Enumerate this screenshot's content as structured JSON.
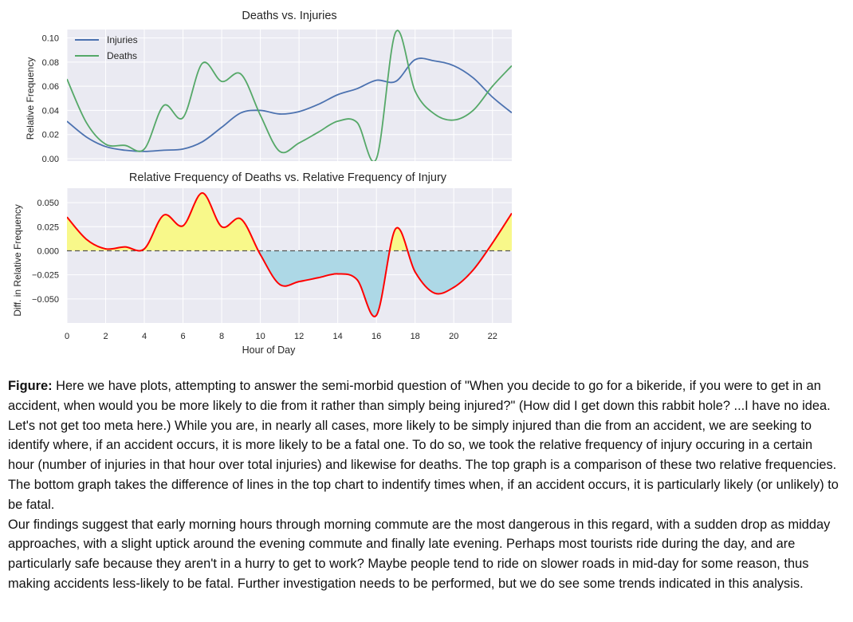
{
  "chart_data": [
    {
      "type": "line",
      "title": "Deaths vs. Injuries",
      "xlabel": "",
      "ylabel": "Relative Frequency",
      "xlim": [
        0,
        23
      ],
      "ylim": [
        -0.002,
        0.107
      ],
      "yticks": [
        "0.00",
        "0.02",
        "0.04",
        "0.06",
        "0.08",
        "0.10"
      ],
      "grid": true,
      "legend": "top-left",
      "series": [
        {
          "name": "Injuries",
          "color": "#4c72b0",
          "x": [
            0,
            1,
            2,
            3,
            4,
            5,
            6,
            7,
            8,
            9,
            10,
            11,
            12,
            13,
            14,
            15,
            16,
            17,
            18,
            19,
            20,
            21,
            22,
            23
          ],
          "values": [
            0.031,
            0.018,
            0.01,
            0.007,
            0.006,
            0.007,
            0.008,
            0.014,
            0.026,
            0.038,
            0.04,
            0.037,
            0.039,
            0.045,
            0.053,
            0.058,
            0.065,
            0.064,
            0.082,
            0.081,
            0.077,
            0.067,
            0.051,
            0.038
          ]
        },
        {
          "name": "Deaths",
          "color": "#55a868",
          "x": [
            0,
            1,
            2,
            3,
            4,
            5,
            6,
            7,
            8,
            9,
            10,
            11,
            12,
            13,
            14,
            15,
            16,
            17,
            18,
            19,
            20,
            21,
            22,
            23
          ],
          "values": [
            0.066,
            0.03,
            0.012,
            0.011,
            0.008,
            0.044,
            0.034,
            0.079,
            0.064,
            0.07,
            0.036,
            0.006,
            0.013,
            0.022,
            0.031,
            0.03,
            0.0,
            0.105,
            0.056,
            0.037,
            0.032,
            0.04,
            0.06,
            0.077
          ]
        }
      ]
    },
    {
      "type": "area",
      "title": "Relative Frequency of Deaths vs. Relative Frequency of Injury",
      "xlabel": "Hour of Day",
      "ylabel": "Diff. in Relative Frequency",
      "xlim": [
        0,
        23
      ],
      "ylim": [
        -0.075,
        0.065
      ],
      "xticks": [
        "0",
        "2",
        "4",
        "6",
        "8",
        "10",
        "12",
        "14",
        "16",
        "18",
        "20",
        "22"
      ],
      "yticks": [
        "0.050",
        "0.025",
        "0.000",
        "−0.025",
        "−0.050"
      ],
      "grid": true,
      "positive_fill": "#f8f88a",
      "negative_fill": "#add8e6",
      "line_color": "#ff0000",
      "zero_line_color": "#555555",
      "series": [
        {
          "name": "",
          "x": [
            0,
            1,
            2,
            3,
            4,
            5,
            6,
            7,
            8,
            9,
            10,
            11,
            12,
            13,
            14,
            15,
            16,
            17,
            18,
            19,
            20,
            21,
            22,
            23
          ],
          "values": [
            0.035,
            0.012,
            0.002,
            0.004,
            0.002,
            0.037,
            0.026,
            0.06,
            0.025,
            0.033,
            -0.004,
            -0.035,
            -0.032,
            -0.028,
            -0.024,
            -0.03,
            -0.067,
            0.023,
            -0.022,
            -0.044,
            -0.038,
            -0.02,
            0.008,
            0.039
          ]
        }
      ]
    }
  ],
  "caption": {
    "label": "Figure:",
    "paragraph1": "Here we have plots, attempting to answer the semi-morbid question of \"When you decide to go for a bikeride, if you were to get in an accident, when would you be more likely to die from it rather than simply being injured?\" (How did I get down this rabbit hole? ...I have no idea. Let's not get too meta here.) While you are, in nearly all cases, more likely to be simply injured than die from an accident, we are seeking to identify where, if an accident occurs, it is more likely to be a fatal one. To do so, we took the relative frequency of injury occuring in a certain hour (number of injuries in that hour over total injuries) and likewise for deaths. The top graph is a comparison of these two relative frequencies. The bottom graph takes the difference of lines in the top chart to indentify times when, if an accident occurs, it is particularly likely (or unlikely) to be fatal.",
    "paragraph2": "Our findings suggest that early morning hours through morning commute are the most dangerous in this regard, with a sudden drop as midday approaches, with a slight uptick around the evening commute and finally late evening. Perhaps most tourists ride during the day, and are particularly safe because they aren't in a hurry to get to work? Maybe people tend to ride on slower roads in mid-day for some reason, thus making accidents less-likely to be fatal. Further investigation needs to be performed, but we do see some trends indicated in this analysis."
  }
}
